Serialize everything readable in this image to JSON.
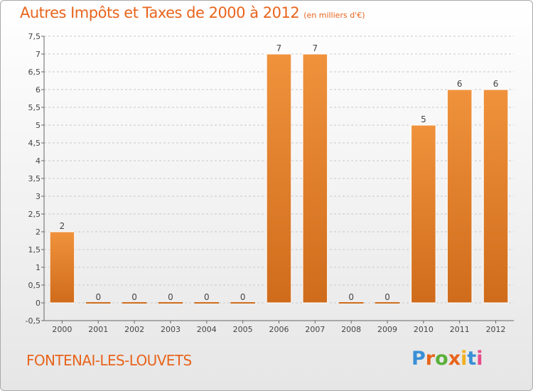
{
  "title": "Autres Impôts et Taxes de 2000 à 2012",
  "subtitle": "(en milliers d'€)",
  "commune": "FONTENAI-LES-LOUVETS",
  "brand": {
    "letters": [
      "P",
      "r",
      "o",
      "x",
      "i",
      "t",
      "i"
    ],
    "colors": [
      "#3a8fd6",
      "#e8641c",
      "#5ab03a",
      "#e8641c",
      "#f2b01e",
      "#3a8fd6",
      "#e84b8a"
    ]
  },
  "colors": {
    "bar": "#f0923c",
    "bar_dark": "#cf6c1c",
    "accent": "#e8641c",
    "grid": "#c8c8c8"
  },
  "chart_data": {
    "type": "bar",
    "title": "Autres Impôts et Taxes de 2000 à 2012",
    "subtitle": "(en milliers d'€)",
    "categories": [
      "2000",
      "2001",
      "2002",
      "2003",
      "2004",
      "2005",
      "2006",
      "2007",
      "2008",
      "2009",
      "2010",
      "2011",
      "2012"
    ],
    "values": [
      2,
      0,
      0,
      0,
      0,
      0,
      7,
      7,
      0,
      0,
      5,
      6,
      6
    ],
    "data_labels": [
      "2",
      "0",
      "0",
      "0",
      "0",
      "0",
      "7",
      "7",
      "0",
      "0",
      "5",
      "6",
      "6"
    ],
    "yticks": [
      "-0,5",
      "0",
      "0,5",
      "1",
      "1,5",
      "2",
      "2,5",
      "3",
      "3,5",
      "4",
      "4,5",
      "5",
      "5,5",
      "6",
      "6,5",
      "7",
      "7,5"
    ],
    "ylim": [
      -0.5,
      7.5
    ],
    "grid": true,
    "gridlines": "dashed horizontal"
  }
}
